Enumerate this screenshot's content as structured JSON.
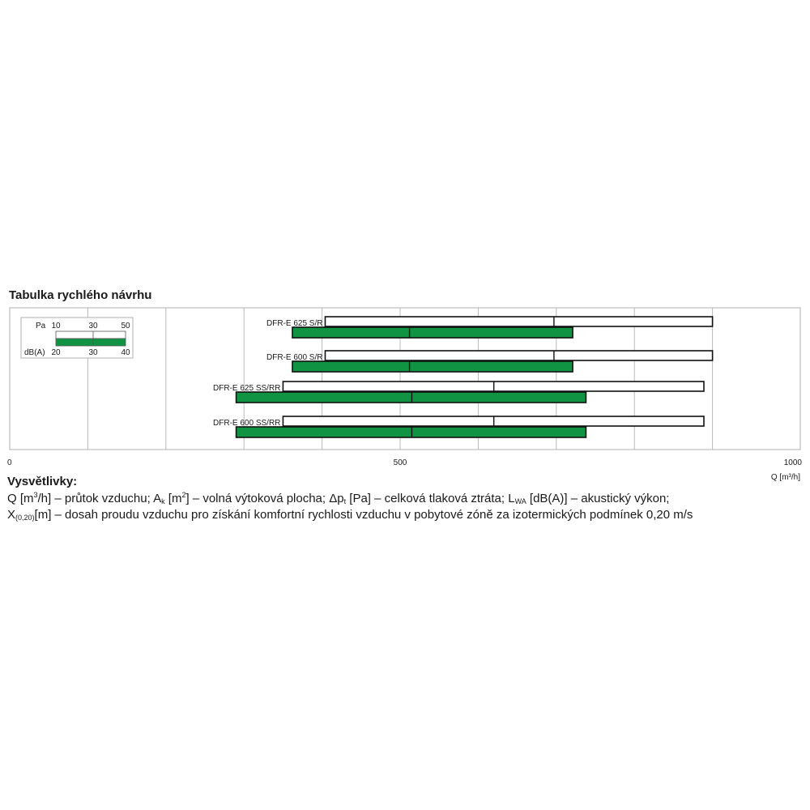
{
  "title": "Tabulka rychlého návrhu",
  "colors": {
    "green": "#109443",
    "frame": "#b0b0b0",
    "grid": "#b8b8b8",
    "text": "#1a1a1a"
  },
  "chart_data": {
    "type": "bar",
    "subtype": "range-bars",
    "x_axis": {
      "min": 0,
      "max": 1000,
      "ticks": [
        0,
        500,
        1000
      ],
      "label": "Q [m³/h]",
      "grid_step": 100
    },
    "scale_key": {
      "rows": [
        {
          "label": "Pa",
          "values": [
            "10",
            "30",
            "50"
          ]
        },
        {
          "label": "dB(A)",
          "values": [
            "20",
            "30",
            "40"
          ]
        }
      ]
    },
    "products": [
      {
        "name": "DFR-E 625 S/R",
        "pa": {
          "start": 404,
          "mid": 697,
          "end": 900
        },
        "dba": {
          "start": 362,
          "mid": 512,
          "end": 721
        }
      },
      {
        "name": "DFR-E 600 S/R",
        "pa": {
          "start": 404,
          "mid": 697,
          "end": 900
        },
        "dba": {
          "start": 362,
          "mid": 512,
          "end": 721
        }
      },
      {
        "name": "DFR-E 625 SS/RR",
        "pa": {
          "start": 350,
          "mid": 620,
          "end": 889
        },
        "dba": {
          "start": 290,
          "mid": 515,
          "end": 738
        }
      },
      {
        "name": "DFR-E 600 SS/RR",
        "pa": {
          "start": 350,
          "mid": 620,
          "end": 889
        },
        "dba": {
          "start": 290,
          "mid": 515,
          "end": 738
        }
      }
    ]
  },
  "legend": {
    "title": "Vysvětlivky:",
    "line1": {
      "q_sym": "Q [m",
      "q_sup": "3",
      "q_rest": "/h] – průtok vzduchu; A",
      "ak_sub": "k",
      "ak_unit": " [m",
      "ak_sup": "2",
      "ak_rest": "] – volná výtoková plocha; Δp",
      "dp_sub": "t",
      "dp_rest": " [Pa] – celková tlaková ztráta; L",
      "lwa_sub": "WA",
      "lwa_rest": " [dB(A)] – akustický výkon;"
    },
    "line2": {
      "x_sym": "X",
      "x_sub": "(0,20)",
      "x_rest": "[m] – dosah proudu vzduchu pro získání komfortní rychlosti vzduchu v pobytové zóně za izotermických podmínek 0,20 m/s"
    }
  }
}
